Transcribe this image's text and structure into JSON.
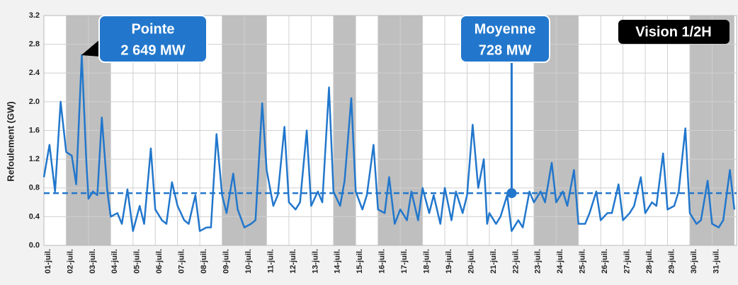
{
  "chart_data": {
    "type": "line",
    "y_label": "Refoulement (GW)",
    "badge": "Vision 1/2H",
    "color": "#2277cc",
    "shade_color": "#bfbfbf",
    "shaded_ranges": [
      [
        1,
        3
      ],
      [
        8,
        10
      ],
      [
        13,
        14
      ],
      [
        15,
        17
      ],
      [
        22,
        24
      ],
      [
        29,
        31
      ]
    ],
    "xlim": [
      0,
      31.1
    ],
    "xticks": [
      {
        "value": 0,
        "label": "01-juil."
      },
      {
        "value": 1,
        "label": "02-juil."
      },
      {
        "value": 2,
        "label": "03-juil."
      },
      {
        "value": 3,
        "label": "04-juil."
      },
      {
        "value": 4,
        "label": "05-juil."
      },
      {
        "value": 5,
        "label": "06-juil."
      },
      {
        "value": 6,
        "label": "07-juil."
      },
      {
        "value": 7,
        "label": "08-juil."
      },
      {
        "value": 8,
        "label": "09-juil."
      },
      {
        "value": 9,
        "label": "10-juil."
      },
      {
        "value": 10,
        "label": "11-juil."
      },
      {
        "value": 11,
        "label": "12-juil."
      },
      {
        "value": 12,
        "label": "13-juil."
      },
      {
        "value": 13,
        "label": "14-juil."
      },
      {
        "value": 14,
        "label": "15-juil."
      },
      {
        "value": 15,
        "label": "16-juil."
      },
      {
        "value": 16,
        "label": "17-juil."
      },
      {
        "value": 17,
        "label": "18-juil."
      },
      {
        "value": 18,
        "label": "19-juil."
      },
      {
        "value": 19,
        "label": "20-juil."
      },
      {
        "value": 20,
        "label": "21-juil."
      },
      {
        "value": 21,
        "label": "22-juil."
      },
      {
        "value": 22,
        "label": "23-juil."
      },
      {
        "value": 23,
        "label": "24-juil."
      },
      {
        "value": 24,
        "label": "25-juil."
      },
      {
        "value": 25,
        "label": "26-juil."
      },
      {
        "value": 26,
        "label": "27-juil."
      },
      {
        "value": 27,
        "label": "28-juil."
      },
      {
        "value": 28,
        "label": "29-juil."
      },
      {
        "value": 29,
        "label": "30-juil."
      },
      {
        "value": 30,
        "label": "31-juil."
      }
    ],
    "ylim": [
      0,
      3.2
    ],
    "yticks": [
      {
        "value": 0,
        "label": "0.0"
      },
      0.4,
      0.8,
      1.2,
      1.6,
      {
        "value": 2,
        "label": "2.0"
      },
      2.4,
      2.8,
      3.2
    ],
    "grid": true,
    "x": [
      0,
      0.25,
      0.5,
      0.75,
      1,
      1.25,
      1.45,
      1.7,
      1.9,
      2,
      2.2,
      2.4,
      2.6,
      2.85,
      3,
      3.3,
      3.5,
      3.75,
      4,
      4.3,
      4.5,
      4.8,
      5,
      5.3,
      5.5,
      5.75,
      6,
      6.3,
      6.5,
      6.8,
      7,
      7.3,
      7.5,
      7.75,
      8,
      8.2,
      8.5,
      8.7,
      9,
      9.3,
      9.5,
      9.8,
      10,
      10.3,
      10.5,
      10.8,
      11,
      11.3,
      11.5,
      11.8,
      12,
      12.3,
      12.5,
      12.8,
      13,
      13.3,
      13.5,
      13.8,
      14,
      14.3,
      14.5,
      14.8,
      15,
      15.3,
      15.5,
      15.75,
      16,
      16.3,
      16.5,
      16.8,
      17,
      17.3,
      17.5,
      17.8,
      18,
      18.3,
      18.5,
      18.8,
      19,
      19.25,
      19.5,
      19.75,
      19.9,
      20,
      20.3,
      20.5,
      20.8,
      21,
      21.3,
      21.5,
      21.8,
      22,
      22.3,
      22.5,
      22.8,
      23,
      23.3,
      23.5,
      23.8,
      24,
      24.3,
      24.5,
      24.8,
      25,
      25.3,
      25.5,
      25.8,
      26,
      26.3,
      26.5,
      26.8,
      27,
      27.3,
      27.5,
      27.8,
      28,
      28.3,
      28.5,
      28.8,
      29,
      29.3,
      29.5,
      29.8,
      30,
      30.3,
      30.5,
      30.8,
      31
    ],
    "values": [
      0.95,
      1.4,
      0.75,
      2.0,
      1.3,
      1.25,
      0.85,
      2.65,
      1.2,
      0.65,
      0.75,
      0.7,
      1.78,
      0.75,
      0.4,
      0.45,
      0.3,
      0.78,
      0.2,
      0.55,
      0.3,
      1.35,
      0.5,
      0.35,
      0.3,
      0.88,
      0.55,
      0.35,
      0.3,
      0.7,
      0.2,
      0.25,
      0.25,
      1.55,
      0.7,
      0.45,
      1.0,
      0.5,
      0.25,
      0.3,
      0.35,
      1.98,
      1.05,
      0.55,
      0.7,
      1.65,
      0.6,
      0.5,
      0.6,
      1.6,
      0.55,
      0.75,
      0.6,
      2.2,
      0.75,
      0.55,
      0.9,
      2.05,
      0.75,
      0.5,
      0.7,
      1.4,
      0.5,
      0.45,
      0.95,
      0.3,
      0.5,
      0.35,
      0.75,
      0.35,
      0.8,
      0.45,
      0.7,
      0.3,
      0.8,
      0.35,
      0.75,
      0.45,
      0.7,
      1.68,
      0.8,
      1.2,
      0.3,
      0.45,
      0.3,
      0.4,
      0.7,
      0.2,
      0.35,
      0.25,
      0.75,
      0.6,
      0.75,
      0.6,
      1.15,
      0.6,
      0.75,
      0.55,
      1.05,
      0.3,
      0.3,
      0.45,
      0.75,
      0.35,
      0.45,
      0.45,
      0.85,
      0.35,
      0.45,
      0.55,
      0.95,
      0.45,
      0.6,
      0.55,
      1.28,
      0.5,
      0.55,
      0.75,
      1.63,
      0.45,
      0.3,
      0.35,
      0.9,
      0.3,
      0.25,
      0.35,
      1.05,
      0.5
    ],
    "peak": {
      "title": "Pointe",
      "label": "2 649 MW",
      "x": 1.68,
      "value": 2.649
    },
    "mean": {
      "title": "Moyenne",
      "label": "728 MW",
      "x": 21,
      "value": 0.728
    }
  }
}
